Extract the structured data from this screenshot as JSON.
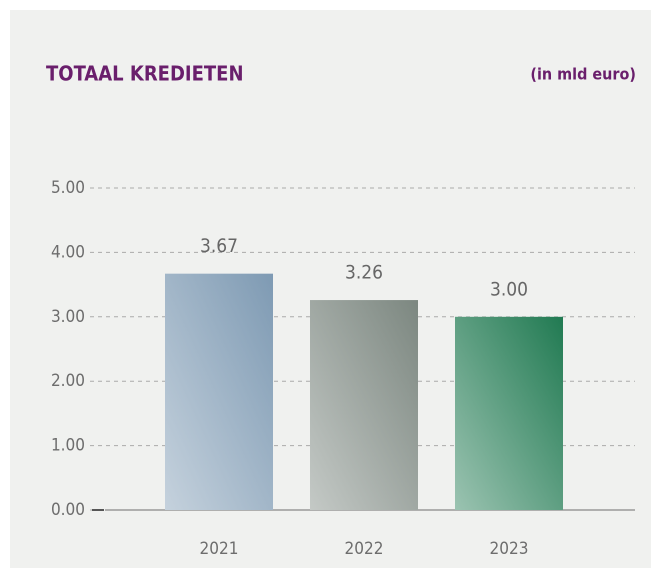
{
  "chart_data": {
    "type": "bar",
    "title": "TOTAAL KREDIETEN",
    "subtitle": "(in mld euro)",
    "categories": [
      "2021",
      "2022",
      "2023"
    ],
    "values": [
      3.67,
      3.26,
      3.0
    ],
    "value_labels": [
      "3.67",
      "3.26",
      "3.00"
    ],
    "colors": [
      "#7e9ab3",
      "#7c8780",
      "#217a52"
    ],
    "ylim": [
      0,
      5
    ],
    "yticks": [
      {
        "value": 0,
        "label": "0.00"
      },
      {
        "value": 1,
        "label": "1.00"
      },
      {
        "value": 2,
        "label": "2.00"
      },
      {
        "value": 3,
        "label": "3.00"
      },
      {
        "value": 4,
        "label": "4.00"
      },
      {
        "value": 5,
        "label": "5.00"
      }
    ],
    "grid": true
  }
}
